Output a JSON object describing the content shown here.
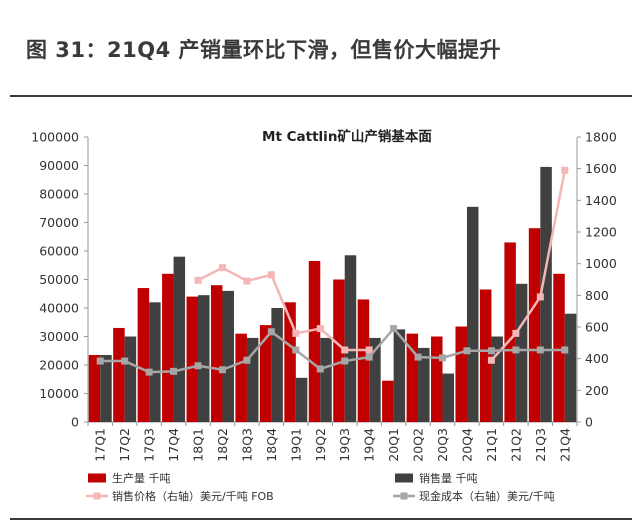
{
  "page": {
    "figure_title": "图 31：21Q4 产销量环比下滑，但售价大幅提升"
  },
  "chart_data": {
    "type": "bar",
    "title": "Mt Cattlin矿山产销基本面",
    "categories": [
      "17Q1",
      "17Q2",
      "17Q3",
      "17Q4",
      "18Q1",
      "18Q2",
      "18Q3",
      "18Q4",
      "19Q1",
      "19Q2",
      "19Q3",
      "19Q4",
      "20Q1",
      "20Q2",
      "20Q3",
      "20Q4",
      "21Q1",
      "21Q2",
      "21Q3",
      "21Q4"
    ],
    "ylim_left": [
      0,
      100000
    ],
    "yticks_left": [
      "0",
      "10000",
      "20000",
      "30000",
      "40000",
      "50000",
      "60000",
      "70000",
      "80000",
      "90000",
      "100000"
    ],
    "ylim_right": [
      0,
      1800
    ],
    "yticks_right": [
      "0",
      "200",
      "400",
      "600",
      "800",
      "1000",
      "1200",
      "1400",
      "1600",
      "1800"
    ],
    "grid": false,
    "legend_position": "bottom",
    "colors": {
      "production": "#c00000",
      "sales": "#404040",
      "price": "#f4b6b6",
      "cost": "#a6a6a6",
      "axis": "#999999"
    },
    "series": [
      {
        "name": "生产量 千吨",
        "kind": "bar",
        "axis": "left",
        "values": [
          23500,
          33000,
          47000,
          52000,
          44000,
          48000,
          31000,
          34000,
          42000,
          56500,
          50000,
          43000,
          14500,
          31000,
          30000,
          33500,
          46500,
          63000,
          68000,
          52000
        ]
      },
      {
        "name": "销售量 千吨",
        "kind": "bar",
        "axis": "left",
        "values": [
          23500,
          30000,
          42000,
          58000,
          44500,
          46000,
          29500,
          40000,
          15500,
          29500,
          58500,
          29500,
          32500,
          26000,
          17000,
          75500,
          30000,
          48500,
          89500,
          38000
        ]
      },
      {
        "name": "销售价格（右轴）美元/千吨 FOB",
        "kind": "line",
        "axis": "right",
        "values": [
          null,
          null,
          null,
          null,
          895,
          975,
          890,
          930,
          560,
          590,
          455,
          455,
          null,
          null,
          null,
          null,
          390,
          560,
          790,
          1590
        ]
      },
      {
        "name": "现金成本（右轴）美元/千吨",
        "kind": "line",
        "axis": "right",
        "values": [
          385,
          385,
          315,
          320,
          355,
          330,
          390,
          570,
          455,
          335,
          385,
          410,
          590,
          410,
          405,
          450,
          450,
          455,
          455,
          455
        ]
      }
    ]
  }
}
